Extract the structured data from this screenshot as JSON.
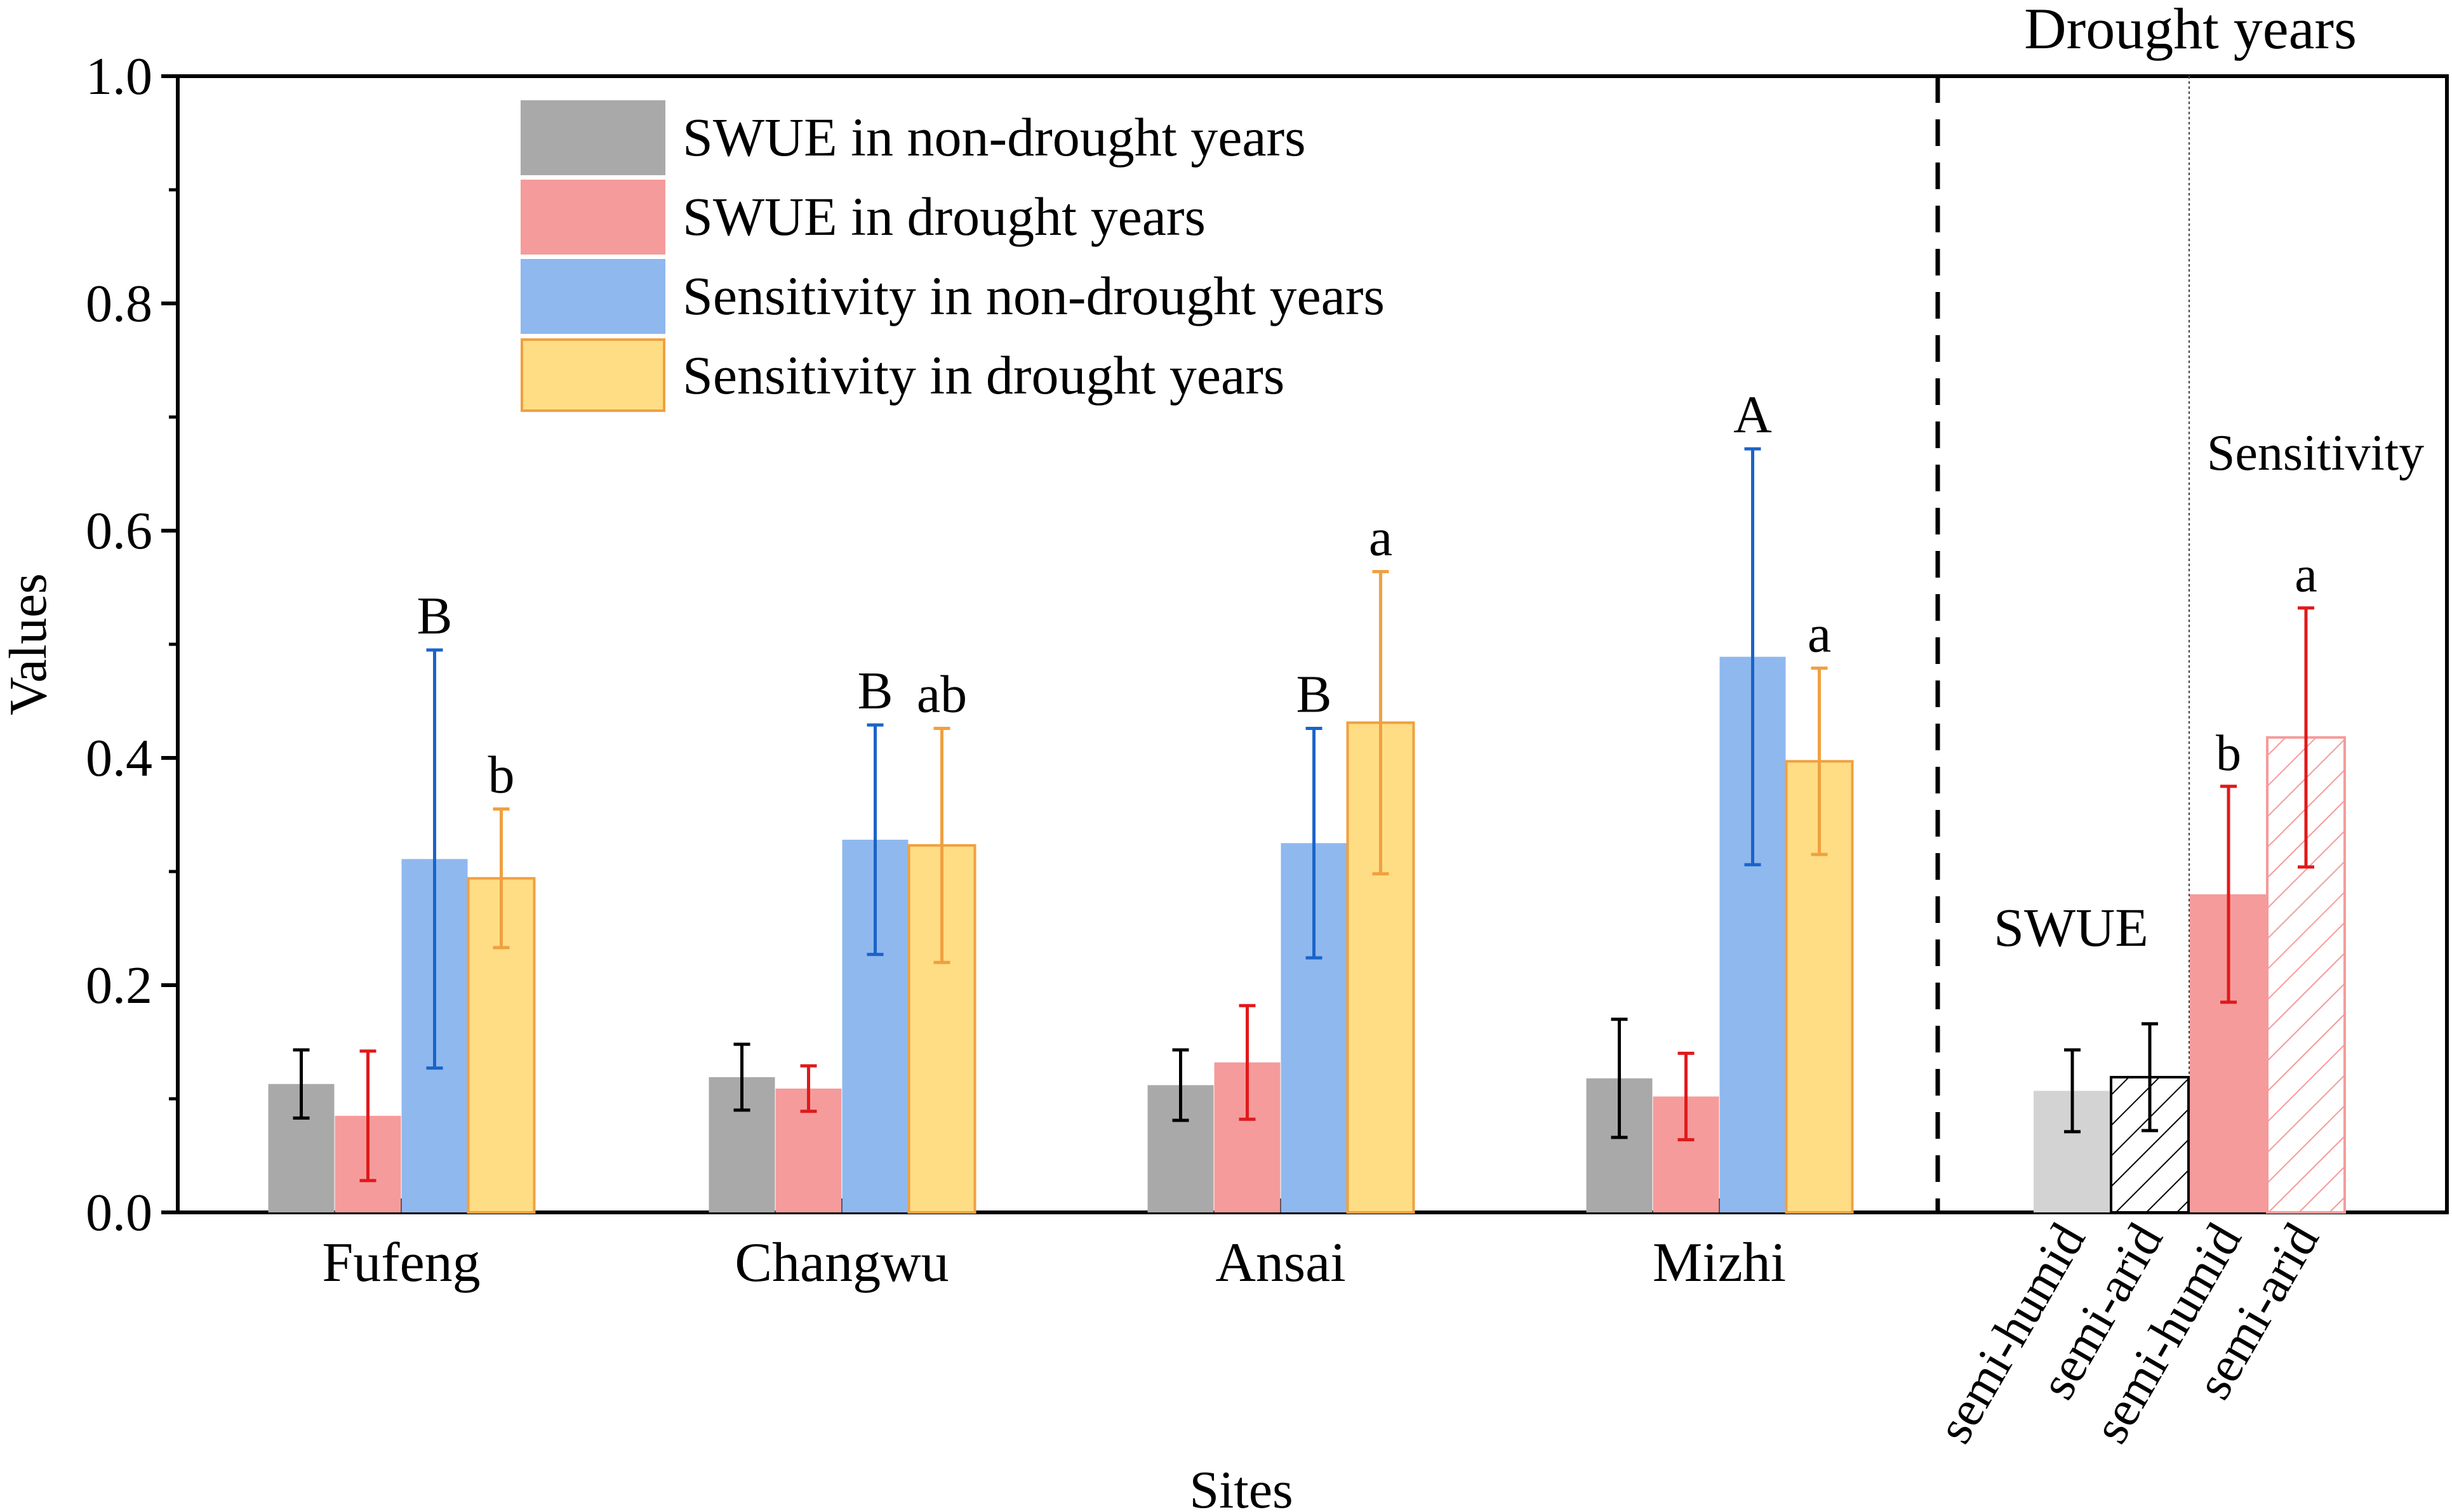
{
  "chart_data": {
    "type": "bar",
    "xlabel": "Sites",
    "ylabel": "Values",
    "ylim": [
      0,
      1.0
    ],
    "yticks": [
      "0.0",
      "0.2",
      "0.4",
      "0.6",
      "0.8",
      "1.0"
    ],
    "grid": false,
    "legend_position": "top-left",
    "categories": [
      "Fufeng",
      "Changwu",
      "Ansai",
      "Mizhi"
    ],
    "series": [
      {
        "name": "SWUE in non-drought years",
        "color": "#a9a9a9",
        "error_color": "#000000",
        "values": [
          0.113,
          0.119,
          0.112,
          0.118
        ],
        "errors": [
          0.03,
          0.029,
          0.031,
          0.052
        ],
        "letters": [
          "",
          "",
          "",
          ""
        ]
      },
      {
        "name": "SWUE in drought years",
        "color": "#f59b9b",
        "error_color": "#e0191b",
        "values": [
          0.085,
          0.109,
          0.132,
          0.102
        ],
        "errors": [
          0.057,
          0.02,
          0.05,
          0.038
        ],
        "letters": [
          "",
          "",
          "",
          ""
        ]
      },
      {
        "name": "Sensitivity in non-drought years",
        "color": "#8fb8ee",
        "error_color": "#1a64c8",
        "values": [
          0.311,
          0.328,
          0.325,
          0.489
        ],
        "errors": [
          0.184,
          0.101,
          0.101,
          0.183
        ],
        "letters": [
          "B",
          "B",
          "B",
          "A"
        ]
      },
      {
        "name": "Sensitivity in drought years",
        "color": "#fedd84",
        "error_color": "#f0a040",
        "values": [
          0.294,
          0.323,
          0.431,
          0.397
        ],
        "errors": [
          0.061,
          0.103,
          0.133,
          0.082
        ],
        "letters": [
          "b",
          "ab",
          "a",
          "a"
        ]
      }
    ],
    "drought_panel": {
      "title": "Drought years",
      "group_labels": [
        "SWUE",
        "Sensitivity"
      ],
      "categories": [
        "semi-humid",
        "semi-arid",
        "semi-humid",
        "semi-arid"
      ],
      "bars": [
        {
          "group": "SWUE",
          "value": 0.107,
          "error": 0.036,
          "letter": "",
          "fill": "#d3d3d3",
          "pattern": "none",
          "error_color": "#000000"
        },
        {
          "group": "SWUE",
          "value": 0.119,
          "error": 0.047,
          "letter": "",
          "fill": "#ffffff",
          "pattern": "hatch-black",
          "error_color": "#000000"
        },
        {
          "group": "Sensitivity",
          "value": 0.28,
          "error": 0.095,
          "letter": "b",
          "fill": "#f59b9b",
          "pattern": "none",
          "error_color": "#e0191b"
        },
        {
          "group": "Sensitivity",
          "value": 0.418,
          "error": 0.114,
          "letter": "a",
          "fill": "#ffffff",
          "pattern": "hatch-pink",
          "error_color": "#e0191b"
        }
      ]
    }
  }
}
